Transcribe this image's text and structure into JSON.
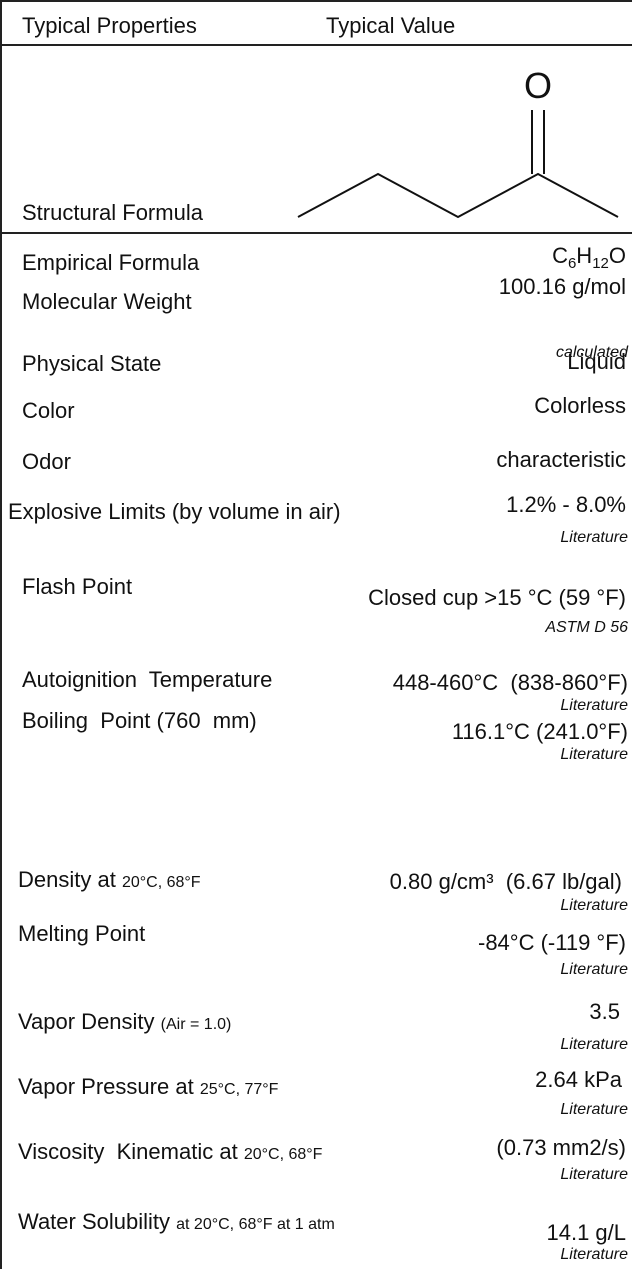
{
  "header": {
    "property": "Typical Properties",
    "value": "Typical Value"
  },
  "structure": {
    "label": "Structural Formula",
    "atom": "O"
  },
  "rows": [
    {
      "label": "Empirical Formula",
      "value_parts": [
        {
          "text": "C"
        },
        {
          "text": "6",
          "sub": true
        },
        {
          "text": "H"
        },
        {
          "text": "12",
          "sub": true
        },
        {
          "text": "O"
        }
      ]
    },
    {
      "label": "Molecular Weight",
      "value": "100.16 g/mol",
      "note": "calculated"
    },
    {
      "label": "Physical State",
      "value": "Liquid"
    },
    {
      "label": "Color",
      "value": "Colorless"
    },
    {
      "label": "Odor",
      "value": "characteristic"
    },
    {
      "label": "Explosive Limits (by volume in air)",
      "value": "1.2% - 8.0%",
      "note": "Literature"
    },
    {
      "label": "Flash Point",
      "value": "Closed cup >15 °C (59 °F)",
      "note": "ASTM D 56"
    },
    {
      "label": "Autoignition  Temperature",
      "value": "448-460°C  (838-860°F)",
      "note": "Literature"
    },
    {
      "label": "Boiling  Point (760  mm)",
      "value": "116.1°C (241.0°F)",
      "note": "Literature"
    },
    {
      "label": "Density at",
      "condition": "20°C, 68°F",
      "value": "0.80 g/cm³  (6.67 lb/gal)",
      "note": "Literature"
    },
    {
      "label": "Melting Point",
      "value": "-84°C (-119 °F)",
      "note": "Literature"
    },
    {
      "label": "Vapor Density",
      "condition": "(Air = 1.0)",
      "value": "3.5",
      "note": "Literature"
    },
    {
      "label": "Vapor Pressure at",
      "condition": "25°C, 77°F",
      "value": "2.64 kPa",
      "note": "Literature"
    },
    {
      "label": "Viscosity  Kinematic at",
      "condition": "20°C, 68°F",
      "value": "(0.73 mm2/s)",
      "note": "Literature"
    },
    {
      "label": "Water Solubility",
      "condition": "at 20°C, 68°F at 1 atm",
      "value": "14.1 g/L",
      "note": "Literature"
    }
  ]
}
